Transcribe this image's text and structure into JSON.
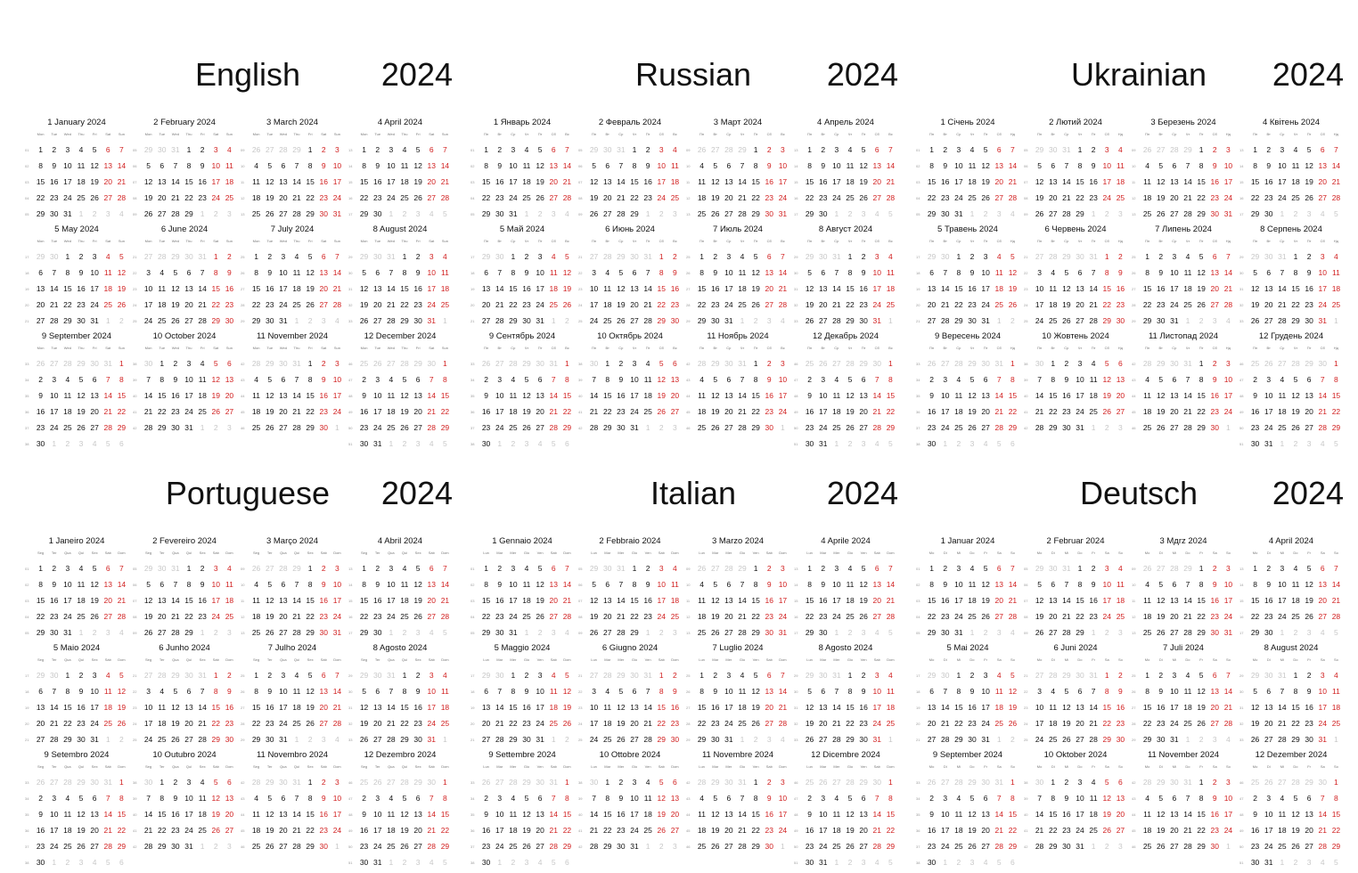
{
  "year": "2024",
  "panels": [
    {
      "language": "English",
      "months": [
        "1 January 2024",
        "2 February 2024",
        "3 March 2024",
        "4 April 2024",
        "5 May 2024",
        "6 June 2024",
        "7 July 2024",
        "8 August 2024",
        "9 September 2024",
        "10 October 2024",
        "11 November 2024",
        "12 December 2024"
      ],
      "weekdays": [
        "Mon",
        "Tue",
        "Wed",
        "Thu",
        "Fri",
        "Sat",
        "Sun"
      ]
    },
    {
      "language": "Russian",
      "months": [
        "1 Январь 2024",
        "2 Февраль 2024",
        "3 Март 2024",
        "4 Апрель 2024",
        "5 Май 2024",
        "6 Июнь 2024",
        "7 Июль 2024",
        "8 Август 2024",
        "9 Сентябрь 2024",
        "10 Октябрь 2024",
        "11 Ноябрь 2024",
        "12 Декабрь 2024"
      ],
      "weekdays": [
        "Пн",
        "Вт",
        "Ср",
        "Чт",
        "Пт",
        "Сб",
        "Вс"
      ]
    },
    {
      "language": "Ukrainian",
      "months": [
        "1 Січень 2024",
        "2 Лютий 2024",
        "3 Березень 2024",
        "4 Квітень 2024",
        "5 Травень 2024",
        "6 Червень 2024",
        "7 Липень 2024",
        "8 Серпень 2024",
        "9 Вересень 2024",
        "10 Жовтень 2024",
        "11 Листопад 2024",
        "12 Грудень 2024"
      ],
      "weekdays": [
        "Пн",
        "Вт",
        "Ср",
        "Чт",
        "Пт",
        "Сб",
        "Нд"
      ]
    },
    {
      "language": "Portuguese",
      "months": [
        "1 Janeiro 2024",
        "2 Fevereiro 2024",
        "3 Março 2024",
        "4 Abril 2024",
        "5 Maio 2024",
        "6 Junho 2024",
        "7 Julho 2024",
        "8 Agosto 2024",
        "9 Setembro 2024",
        "10 Outubro 2024",
        "11 Novembro 2024",
        "12 Dezembro 2024"
      ],
      "weekdays": [
        "Seg",
        "Ter",
        "Qua",
        "Qui",
        "Sex",
        "Sáb",
        "Dom"
      ]
    },
    {
      "language": "Italian",
      "months": [
        "1 Gennaio 2024",
        "2 Febbraio 2024",
        "3 Marzo 2024",
        "4 Aprile 2024",
        "5 Maggio 2024",
        "6 Giugno 2024",
        "7 Luglio 2024",
        "8 Agosto 2024",
        "9 Settembre 2024",
        "10 Ottobre 2024",
        "11 Novembre 2024",
        "12 Dicembre 2024"
      ],
      "weekdays": [
        "Lun",
        "Mar",
        "Mer",
        "Gio",
        "Ven",
        "Sab",
        "Dom"
      ]
    },
    {
      "language": "Deutsch",
      "months": [
        "1 Januar 2024",
        "2 Februar 2024",
        "3 Mдrz 2024",
        "4 April 2024",
        "5 Mai 2024",
        "6 Juni 2024",
        "7 Juli 2024",
        "8 August 2024",
        "9 September 2024",
        "10 Oktober 2024",
        "11 November 2024",
        "12 Dezember 2024"
      ],
      "weekdays": [
        "Mo",
        "Di",
        "Mi",
        "Do",
        "Fr",
        "Sa",
        "So"
      ]
    }
  ]
}
